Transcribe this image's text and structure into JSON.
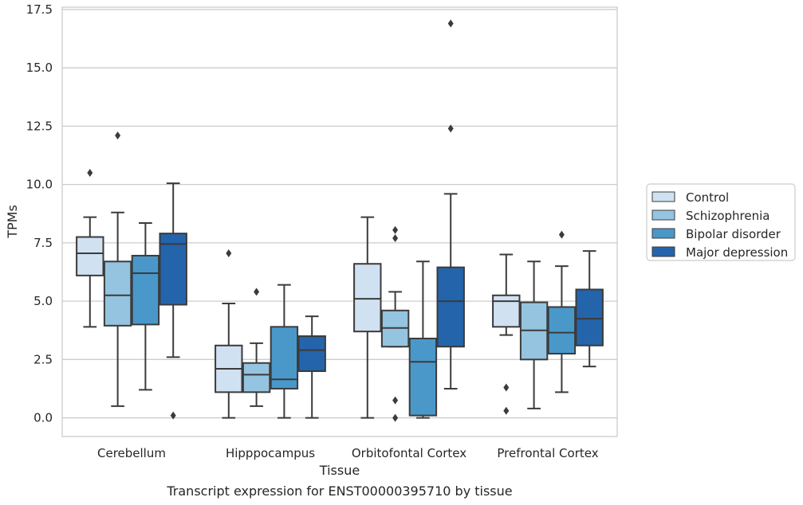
{
  "chart_data": {
    "type": "box",
    "xlabel": "Tissue",
    "ylabel": "TPMs",
    "caption": "Transcript expression for ENST00000395710 by tissue",
    "ylim": [
      -0.8,
      17.6
    ],
    "yticks": [
      "0.0",
      "2.5",
      "5.0",
      "7.5",
      "10.0",
      "12.5",
      "15.0",
      "17.5"
    ],
    "ytick_values": [
      0,
      2.5,
      5,
      7.5,
      10,
      12.5,
      15,
      17.5
    ],
    "grid": "horizontal",
    "legend_placement": "right",
    "categories": [
      "Cerebellum",
      "Hipppocampus",
      "Orbitofontal Cortex",
      "Prefrontal Cortex"
    ],
    "series": [
      {
        "name": "Control",
        "color": "#d0e1f2",
        "boxes": [
          {
            "whislo": 3.9,
            "q1": 6.1,
            "med": 7.05,
            "q3": 7.75,
            "whishi": 8.6,
            "fliers": [
              10.5
            ]
          },
          {
            "whislo": 0.0,
            "q1": 1.1,
            "med": 2.1,
            "q3": 3.1,
            "whishi": 4.9,
            "fliers": [
              7.05
            ]
          },
          {
            "whislo": 0.0,
            "q1": 3.7,
            "med": 5.1,
            "q3": 6.6,
            "whishi": 8.6,
            "fliers": []
          },
          {
            "whislo": 3.55,
            "q1": 3.9,
            "med": 5.0,
            "q3": 5.25,
            "whishi": 7.0,
            "fliers": [
              1.3,
              0.3
            ]
          }
        ]
      },
      {
        "name": "Schizophrenia",
        "color": "#94c4df",
        "boxes": [
          {
            "whislo": 0.5,
            "q1": 3.95,
            "med": 5.25,
            "q3": 6.7,
            "whishi": 8.8,
            "fliers": [
              12.1
            ]
          },
          {
            "whislo": 0.5,
            "q1": 1.1,
            "med": 1.85,
            "q3": 2.35,
            "whishi": 3.2,
            "fliers": [
              5.4
            ]
          },
          {
            "whislo": 3.05,
            "q1": 3.05,
            "med": 3.85,
            "q3": 4.6,
            "whishi": 5.4,
            "fliers": [
              8.05,
              7.7,
              0.75,
              0.0
            ]
          },
          {
            "whislo": 0.4,
            "q1": 2.5,
            "med": 3.75,
            "q3": 4.95,
            "whishi": 6.7,
            "fliers": []
          }
        ]
      },
      {
        "name": "Bipolar disorder",
        "color": "#4a98c9",
        "boxes": [
          {
            "whislo": 1.2,
            "q1": 4.0,
            "med": 6.2,
            "q3": 6.95,
            "whishi": 8.35,
            "fliers": []
          },
          {
            "whislo": 0.0,
            "q1": 1.25,
            "med": 1.65,
            "q3": 3.9,
            "whishi": 5.7,
            "fliers": []
          },
          {
            "whislo": 0.0,
            "q1": 0.1,
            "med": 2.4,
            "q3": 3.4,
            "whishi": 6.7,
            "fliers": []
          },
          {
            "whislo": 1.1,
            "q1": 2.75,
            "med": 3.65,
            "q3": 4.75,
            "whishi": 6.5,
            "fliers": [
              7.85
            ]
          }
        ]
      },
      {
        "name": "Major depression",
        "color": "#2464ab",
        "boxes": [
          {
            "whislo": 2.6,
            "q1": 4.85,
            "med": 7.45,
            "q3": 7.9,
            "whishi": 10.05,
            "fliers": [
              0.1
            ]
          },
          {
            "whislo": 0.0,
            "q1": 2.0,
            "med": 2.9,
            "q3": 3.5,
            "whishi": 4.35,
            "fliers": []
          },
          {
            "whislo": 1.25,
            "q1": 3.05,
            "med": 5.0,
            "q3": 6.45,
            "whishi": 9.6,
            "fliers": [
              16.9,
              12.4
            ]
          },
          {
            "whislo": 2.2,
            "q1": 3.1,
            "med": 4.25,
            "q3": 5.5,
            "whishi": 7.15,
            "fliers": []
          }
        ]
      }
    ]
  }
}
